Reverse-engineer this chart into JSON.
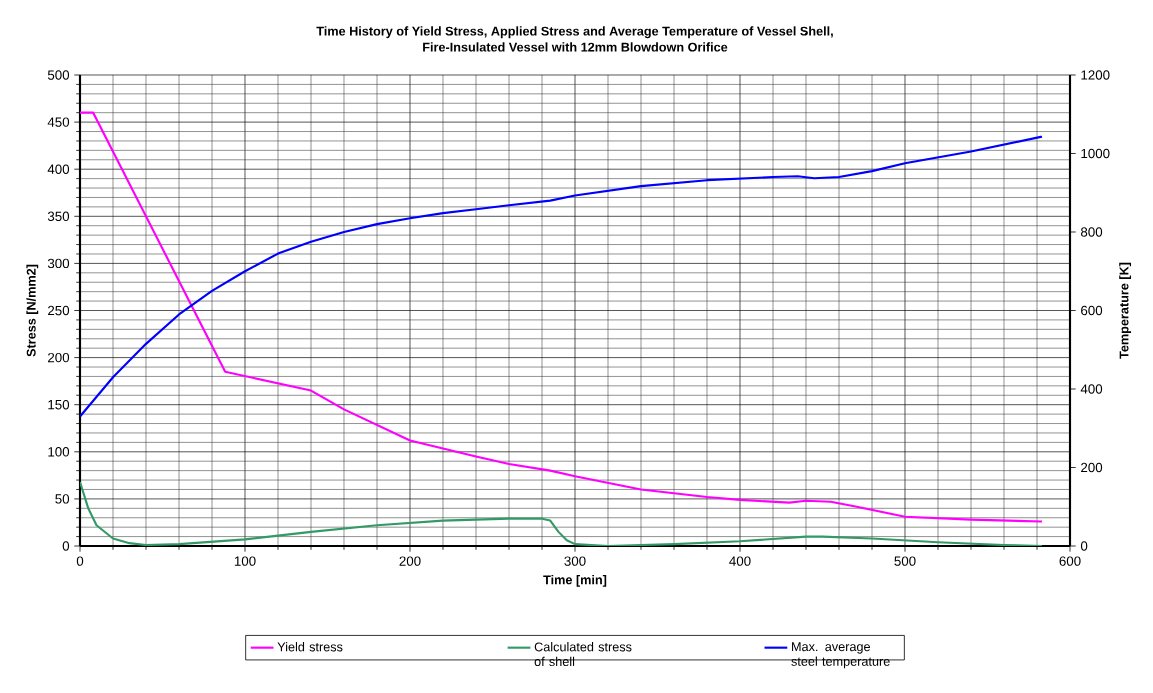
{
  "chart_data": {
    "type": "line",
    "title": "Time History of Yield Stress, Applied Stress and Average Temperature of Vessel Shell,",
    "subtitle": "Fire-Insulated Vessel with 12mm Blowdown Orifice",
    "xlabel": "Time [min]",
    "ylabel": "Stress [N/mm2]",
    "y2label": "Temperature [K]",
    "xlim": [
      0,
      600
    ],
    "xticks": [
      0,
      100,
      200,
      300,
      400,
      500,
      600
    ],
    "ylim": [
      0,
      500
    ],
    "yticks": [
      0,
      50,
      100,
      150,
      200,
      250,
      300,
      350,
      400,
      450,
      500
    ],
    "y2lim": [
      0,
      1200
    ],
    "y2ticks": [
      0,
      200,
      400,
      600,
      800,
      1000,
      1200
    ],
    "grid": true,
    "legend": "bottom",
    "series": [
      {
        "name": "Yield stress",
        "color": "#ff00ff",
        "x": [
          0,
          8,
          88,
          140,
          160,
          200,
          240,
          260,
          285,
          300,
          340,
          380,
          400,
          430,
          440,
          455,
          470,
          500,
          540,
          583
        ],
        "values": [
          460,
          460,
          185,
          165,
          145,
          112,
          95,
          87,
          80,
          74,
          60,
          52,
          49,
          46,
          48,
          47,
          42,
          31,
          28,
          26
        ]
      },
      {
        "name": "Calculated stress of shell",
        "color": "#339966",
        "x": [
          0,
          5,
          10,
          20,
          30,
          40,
          60,
          100,
          140,
          180,
          220,
          260,
          280,
          285,
          290,
          295,
          300,
          320,
          360,
          400,
          440,
          450,
          480,
          520,
          560,
          583
        ],
        "values": [
          68,
          40,
          22,
          8,
          3,
          1,
          2,
          7,
          15,
          22,
          27,
          29,
          29,
          27,
          15,
          6,
          2,
          0,
          2,
          5,
          10,
          10,
          8,
          4,
          1,
          0
        ]
      },
      {
        "name": "Max. average steel temperature",
        "color": "#0000ff",
        "axis": "y2",
        "x": [
          0,
          20,
          40,
          60,
          80,
          100,
          120,
          140,
          160,
          180,
          200,
          220,
          240,
          260,
          285,
          300,
          340,
          380,
          420,
          435,
          445,
          460,
          480,
          500,
          540,
          583
        ],
        "values": [
          330,
          430,
          515,
          590,
          650,
          700,
          745,
          775,
          800,
          820,
          835,
          848,
          858,
          868,
          880,
          893,
          917,
          932,
          940,
          942,
          937,
          940,
          955,
          975,
          1005,
          1043
        ]
      }
    ]
  }
}
